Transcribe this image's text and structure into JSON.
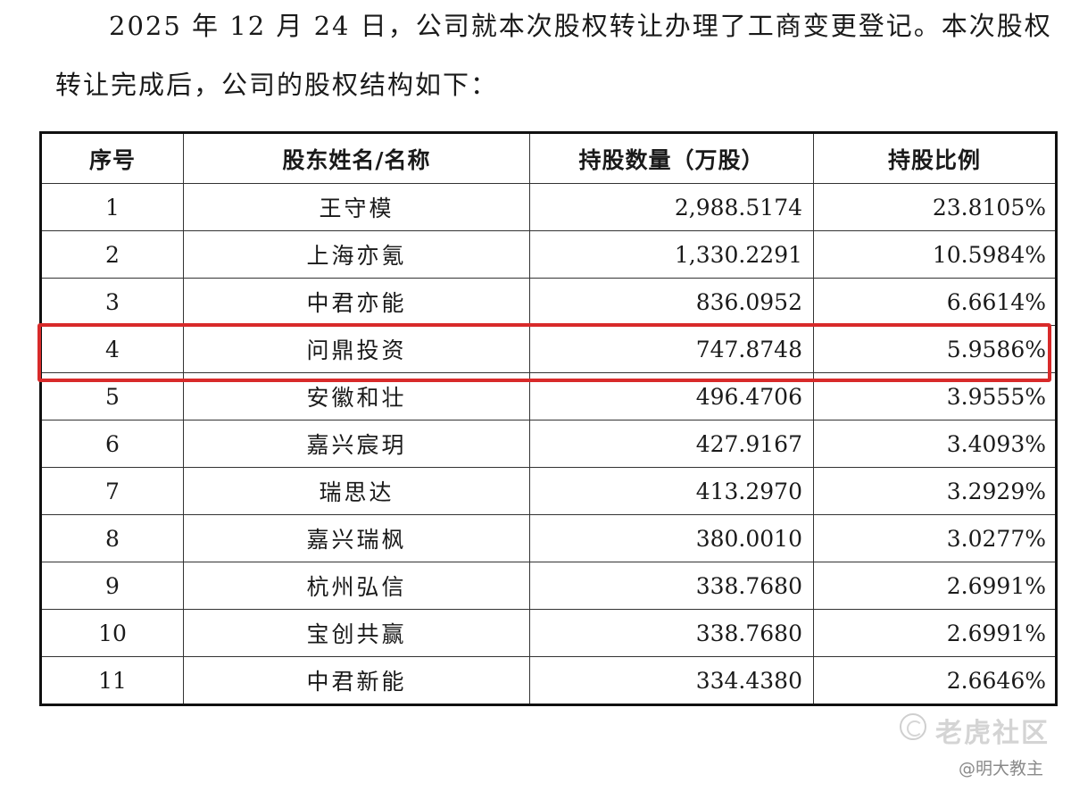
{
  "paragraph": {
    "line1": "2025 年 12 月 24 日，公司就本次股权转让办理了工商变更登记。本次股权",
    "line2": "转让完成后，公司的股权结构如下："
  },
  "table": {
    "headers": [
      "序号",
      "股东姓名/名称",
      "持股数量（万股）",
      "持股比例"
    ],
    "rows": [
      {
        "idx": "1",
        "name": "王守模",
        "shares": "2,988.5174",
        "ratio": "23.8105%"
      },
      {
        "idx": "2",
        "name": "上海亦氪",
        "shares": "1,330.2291",
        "ratio": "10.5984%"
      },
      {
        "idx": "3",
        "name": "中君亦能",
        "shares": "836.0952",
        "ratio": "6.6614%"
      },
      {
        "idx": "4",
        "name": "问鼎投资",
        "shares": "747.8748",
        "ratio": "5.9586%"
      },
      {
        "idx": "5",
        "name": "安徽和壮",
        "shares": "496.4706",
        "ratio": "3.9555%"
      },
      {
        "idx": "6",
        "name": "嘉兴宸玥",
        "shares": "427.9167",
        "ratio": "3.4093%"
      },
      {
        "idx": "7",
        "name": "瑞思达",
        "shares": "413.2970",
        "ratio": "3.2929%"
      },
      {
        "idx": "8",
        "name": "嘉兴瑞枫",
        "shares": "380.0010",
        "ratio": "3.0277%"
      },
      {
        "idx": "9",
        "name": "杭州弘信",
        "shares": "338.7680",
        "ratio": "2.6991%"
      },
      {
        "idx": "10",
        "name": "宝创共赢",
        "shares": "338.7680",
        "ratio": "2.6991%"
      },
      {
        "idx": "11",
        "name": "中君新能",
        "shares": "334.4380",
        "ratio": "2.6646%"
      }
    ],
    "highlight_color": "#d82a2a"
  },
  "watermark": {
    "brand": "老虎社区",
    "user": "@明大教主",
    "logo_icon": "tiger-community-logo-icon"
  }
}
